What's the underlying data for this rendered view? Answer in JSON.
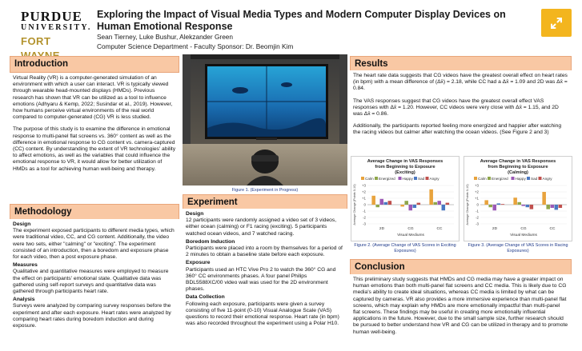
{
  "header": {
    "logo": {
      "line1": "PURDUE",
      "line2": "UNIVERSITY.",
      "line3": "FORT WAYNE"
    },
    "title": "Exploring the Impact of Visual Media Types and Modern Computer Display Devices on Human Emotional Response",
    "authors": "Sean Tierney, Luke Bushur, Alekzander Green",
    "department": "Computer Science Department - Faculty Sponsor: Dr. Beomjin Kim",
    "expand_icon": "expand-arrows-icon",
    "expand_color": "#f3b51e"
  },
  "introduction": {
    "heading": "Introduction",
    "p1": "Virtual Reality (VR) is a computer-generated simulation of an environment with which a user can interact. VR is typically viewed through wearable head-mounted displays (HMDs). Previous research has shown that VR can be utilized as a tool to influence emotions (Adhyaru & Kemp, 2022; Susindar et al., 2019). However, how humans perceive virtual environments of the real world compared to computer-generated (CG) VR is less studied.",
    "p2": "The purpose of this study is to examine the difference in emotional response to multi-panel flat screens vs. 360° content as well as the difference in emotional response to CG content vs. camera-captured (CC) content. By understanding the extent of VR technologies' ability to affect emotions, as well as the variables that could influence the emotional response to VR, it would allow for better utilization of HMDs as a tool for achieving human well-being and therapy."
  },
  "methodology": {
    "heading": "Methodology",
    "design_title": "Design",
    "design_text": "The experiment exposed participants to different media types, which were traditional video, CC, and CG content. Additionally, the video were two sets, either \"calming\" or \"exciting\". The experiment consisted of an introduction, then a boredom and exposure phase for each video, then a post exposure phase.",
    "measures_title": "Measures",
    "measures_text": "Qualitative and quantitative measures were employed to measure the effect on participants' emotional state. Qualitative data was gathered using self-report surveys and quantitative data was gathered through participants heart rate.",
    "analysis_title": "Analysis",
    "analysis_text": "Surveys were analyzed by comparing survey responses before the experiment and after each exposure. Heart rates were analyzed by comparing heart rates during boredom induction and during exposure."
  },
  "figure1": {
    "caption": "Figure 1. (Experiment in Progress)"
  },
  "experiment": {
    "heading": "Experiment",
    "design_title": "Design",
    "design_text": "12 participants were randomly assigned a video set of 3 videos, either ocean (calming) or F1 racing (exciting). 5 participants watched ocean videos, and 7 watched racing.",
    "boredom_title": "Boredom Induction",
    "boredom_text": "Participants were placed into a room by themselves for a period of 2 minutes to obtain a baseline state before each exposure.",
    "exposure_title": "Exposure",
    "exposure_text": "Participants used an HTC Vive Pro 2 to watch the 360° CG and 360° CC environments phases. A four panel Philips BDL5588XC/00 video wall was used for the 2D environment phases.",
    "data_title": "Data Collection",
    "data_text": "Following each exposure, participants were given a survey consisting of five 11-point (0-10) Visual Analogue Scale (VAS) questions to record their emotional response. Heart rate (in bpm) was also recorded throughout the experiment using a Polar H10."
  },
  "results": {
    "heading": "Results",
    "p1": "The heart rate data suggests that CG videos have the greatest overall effect on heart rates (in bpm) with a mean difference of (Δx̄) = 2.18, while CC had a Δx̄ = 1.09 and 2D was Δx̄ = 0.84.",
    "p2": "The VAS responses suggest that CG videos have the greatest overall effect VAS responses with Δx̄ = 1.20. However, CC videos were very close with Δx̄ = 1.15, and 2D was Δx̄ = 0.86.",
    "p3": "Additionally, the participants reported feeling more energized and happier after watching the racing videos but calmer after watching the ocean videos. (See Figure 2 and 3)"
  },
  "figure2": {
    "caption": "Figure 2. (Average Change of VAS Scores in Exciting Exposures)"
  },
  "figure3": {
    "caption": "Figure 3. (Average Change of VAS Scores in Racing Exposures)"
  },
  "conclusion": {
    "heading": "Conclusion",
    "text": "This preliminary study suggests that HMDs and CG media may have a greater impact on human emotions than both multi-panel flat screens and CC media. This is likely due to CG media's ability to create ideal situations, whereas CC media is limited by what can be captured by cameras. VR also provides a more immersive experience than multi-panel flat screens, which may explain why HMDs are more emotionally impactful than multi-panel flat screens. These findings may be useful in creating more emotionally influential applications in the future. However, due to the small sample size, further research should be pursued to better understand how VR and CG can be utilized in therapy and to promote human well-being."
  },
  "chart_data": [
    {
      "type": "bar",
      "title": "Average Change in VAS Responses from Beginning to Exposure (Exciting)",
      "xlabel": "Visual Mediums",
      "ylabel": "Average Change (Points 0-10)",
      "categories": [
        "2D",
        "CG",
        "CC"
      ],
      "ylim": [
        -3,
        3
      ],
      "yticks": [
        "+3",
        "+2",
        "+1",
        "0",
        "-1",
        "-2",
        "-3"
      ],
      "legend_position": "top",
      "series": [
        {
          "name": "Calm",
          "color": "#e8a33d",
          "values": [
            1.4,
            -0.3,
            2.4
          ]
        },
        {
          "name": "Energized",
          "color": "#8fa64a",
          "values": [
            -0.4,
            0.6,
            0.4
          ]
        },
        {
          "name": "Happy",
          "color": "#9b59b6",
          "values": [
            0.9,
            -0.9,
            0.6
          ]
        },
        {
          "name": "Sad",
          "color": "#4a78c2",
          "values": [
            0.4,
            -0.5,
            -0.9
          ]
        },
        {
          "name": "Angry",
          "color": "#c0504d",
          "values": [
            0.6,
            0.3,
            0.3
          ]
        }
      ]
    },
    {
      "type": "bar",
      "title": "Average Change in VAS Responses from Beginning to Exposure (Calming)",
      "xlabel": "Visual Mediums",
      "ylabel": "Average Change (Points 0-10)",
      "categories": [
        "2D",
        "CG",
        "CC"
      ],
      "ylim": [
        -3,
        3
      ],
      "yticks": [
        "+3",
        "+2",
        "+1",
        "0",
        "-1",
        "-2",
        "-3"
      ],
      "legend_position": "top",
      "series": [
        {
          "name": "Calm",
          "color": "#e8a33d",
          "values": [
            0.7,
            1.1,
            2.0
          ]
        },
        {
          "name": "Energized",
          "color": "#8fa64a",
          "values": [
            -0.4,
            0.4,
            -0.7
          ]
        },
        {
          "name": "Happy",
          "color": "#9b59b6",
          "values": [
            -0.9,
            -0.2,
            -0.5
          ]
        },
        {
          "name": "Sad",
          "color": "#4a78c2",
          "values": [
            0.2,
            -0.4,
            -0.8
          ]
        },
        {
          "name": "Angry",
          "color": "#c0504d",
          "values": [
            0.1,
            -0.7,
            -0.5
          ]
        }
      ]
    }
  ]
}
